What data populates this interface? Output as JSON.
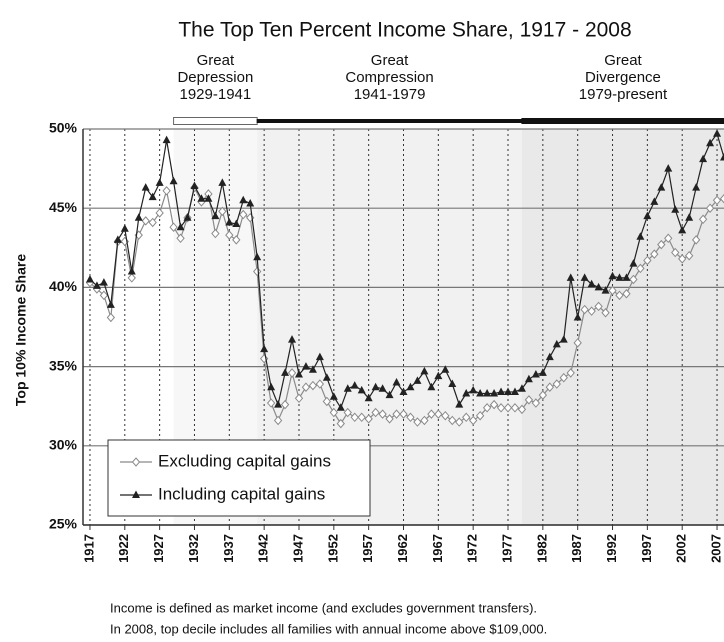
{
  "chart_data": {
    "type": "line",
    "title": "The Top Ten Percent Income Share, 1917 - 2008",
    "y_label": "Top 10% Income Share",
    "periods": [
      {
        "lines": [
          "Great",
          "Depression",
          "1929-1941"
        ],
        "start": 1929,
        "end": 1941
      },
      {
        "lines": [
          "Great",
          "Compression",
          "1941-1979"
        ],
        "start": 1941,
        "end": 1979
      },
      {
        "lines": [
          "Great",
          "Divergence",
          "1979-present"
        ],
        "start": 1979,
        "end": 2008
      }
    ],
    "x": [
      1917,
      1918,
      1919,
      1920,
      1921,
      1922,
      1923,
      1924,
      1925,
      1926,
      1927,
      1928,
      1929,
      1930,
      1931,
      1932,
      1933,
      1934,
      1935,
      1936,
      1937,
      1938,
      1939,
      1940,
      1941,
      1942,
      1943,
      1944,
      1945,
      1946,
      1947,
      1948,
      1949,
      1950,
      1951,
      1952,
      1953,
      1954,
      1955,
      1956,
      1957,
      1958,
      1959,
      1960,
      1961,
      1962,
      1963,
      1964,
      1965,
      1966,
      1967,
      1968,
      1969,
      1970,
      1971,
      1972,
      1973,
      1974,
      1975,
      1976,
      1977,
      1978,
      1979,
      1980,
      1981,
      1982,
      1983,
      1984,
      1985,
      1986,
      1987,
      1988,
      1989,
      1990,
      1991,
      1992,
      1993,
      1994,
      1995,
      1996,
      1997,
      1998,
      1999,
      2000,
      2001,
      2002,
      2003,
      2004,
      2005,
      2006,
      2007,
      2008
    ],
    "series": [
      {
        "name": "Excluding capital gains",
        "color": "#8a8a8a",
        "marker": "diamond",
        "values": [
          40.3,
          39.9,
          39.5,
          38.1,
          42.9,
          42.9,
          40.6,
          43.3,
          44.2,
          44.1,
          44.7,
          46.1,
          43.8,
          43.1,
          44.4,
          46.3,
          45.4,
          45.9,
          43.4,
          44.8,
          43.3,
          43.0,
          44.6,
          44.4,
          41.0,
          35.5,
          32.7,
          31.6,
          32.6,
          34.6,
          33.0,
          33.7,
          33.8,
          33.9,
          32.8,
          32.1,
          31.4,
          32.1,
          31.8,
          31.8,
          31.7,
          32.1,
          32.0,
          31.7,
          32.0,
          32.0,
          31.8,
          31.5,
          31.6,
          32.0,
          32.0,
          31.9,
          31.6,
          31.5,
          31.8,
          31.6,
          31.9,
          32.4,
          32.6,
          32.4,
          32.4,
          32.4,
          32.3,
          32.9,
          32.7,
          33.2,
          33.7,
          33.9,
          34.3,
          34.6,
          36.5,
          38.6,
          38.5,
          38.8,
          38.4,
          39.8,
          39.5,
          39.6,
          40.5,
          41.2,
          41.7,
          42.1,
          42.7,
          43.1,
          42.2,
          41.8,
          42.0,
          43.0,
          44.3,
          45.0,
          45.5,
          45.6
        ]
      },
      {
        "name": "Including capital gains",
        "color": "#222222",
        "marker": "triangle",
        "values": [
          40.5,
          40.1,
          40.3,
          38.9,
          43.0,
          43.7,
          41.0,
          44.4,
          46.3,
          45.7,
          46.6,
          49.3,
          46.7,
          43.8,
          44.4,
          46.4,
          45.6,
          45.6,
          44.5,
          46.6,
          44.1,
          44.0,
          45.5,
          45.3,
          41.9,
          36.1,
          33.7,
          32.6,
          34.6,
          36.7,
          34.5,
          35.0,
          34.8,
          35.6,
          34.3,
          33.1,
          32.4,
          33.6,
          33.8,
          33.5,
          33.0,
          33.7,
          33.6,
          33.2,
          34.0,
          33.4,
          33.7,
          34.1,
          34.7,
          33.7,
          34.4,
          34.8,
          33.9,
          32.6,
          33.3,
          33.5,
          33.3,
          33.3,
          33.3,
          33.4,
          33.4,
          33.4,
          33.6,
          34.2,
          34.5,
          34.6,
          35.6,
          36.4,
          36.7,
          40.6,
          38.1,
          40.6,
          40.2,
          40.0,
          39.8,
          40.7,
          40.6,
          40.6,
          41.5,
          43.2,
          44.5,
          45.4,
          46.3,
          47.5,
          44.9,
          43.6,
          44.4,
          46.3,
          48.1,
          49.1,
          49.7,
          48.2
        ]
      }
    ],
    "xlim": [
      1916,
      2008
    ],
    "xticks": [
      1917,
      1922,
      1927,
      1932,
      1937,
      1942,
      1947,
      1952,
      1957,
      1962,
      1967,
      1972,
      1977,
      1982,
      1987,
      1992,
      1997,
      2002,
      2007
    ],
    "ylim": [
      25,
      50
    ],
    "yticks": [
      {
        "value": 25,
        "label": "25%"
      },
      {
        "value": 30,
        "label": "30%"
      },
      {
        "value": 35,
        "label": "35%"
      },
      {
        "value": 40,
        "label": "40%"
      },
      {
        "value": 45,
        "label": "45%"
      },
      {
        "value": 50,
        "label": "50%"
      }
    ],
    "grid": true,
    "legend": "lower-left",
    "notes": [
      "Income is defined as market income (and excludes government transfers).",
      "In 2008, top decile includes all families with annual income above $109,000."
    ]
  }
}
